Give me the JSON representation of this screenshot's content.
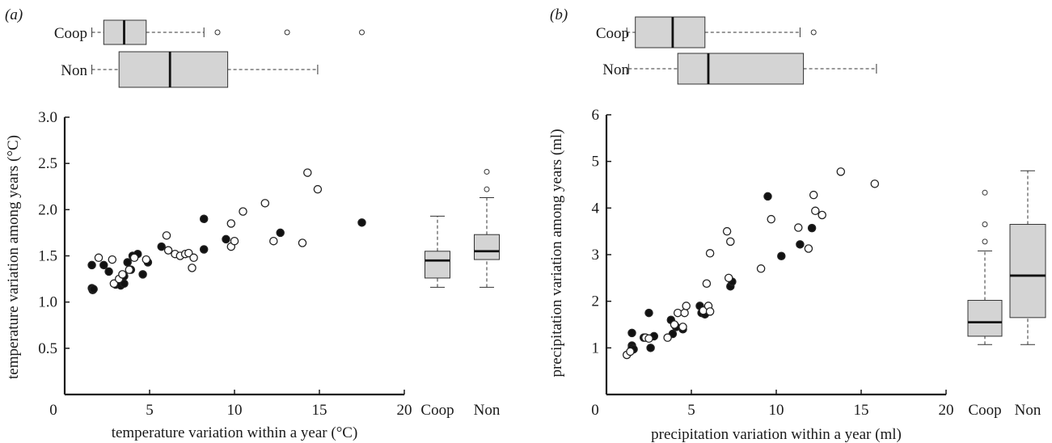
{
  "chart_data": [
    {
      "type": "scatter",
      "panel_label": "(a)",
      "xlabel": "temperature variation within a year (°C)",
      "ylabel": "temperature variation among years (°C)",
      "xlim": [
        0,
        20
      ],
      "ylim": [
        0,
        3.0
      ],
      "x_ticks": [
        "0",
        "5",
        "10",
        "15",
        "20"
      ],
      "y_ticks": [
        "0.5",
        "1.0",
        "1.5",
        "2.0",
        "2.5",
        "3.0"
      ],
      "y_tick_values": [
        0.5,
        1.0,
        1.5,
        2.0,
        2.5,
        3.0
      ],
      "grid": false,
      "marker_key": {
        "filled": "Coop",
        "open": "Non"
      },
      "series": [
        {
          "name": "Coop",
          "marker": "filled",
          "points": [
            [
              1.6,
              1.4
            ],
            [
              1.6,
              1.15
            ],
            [
              1.65,
              1.13
            ],
            [
              1.7,
              1.14
            ],
            [
              2.3,
              1.4
            ],
            [
              2.6,
              1.33
            ],
            [
              3.0,
              1.19
            ],
            [
              3.3,
              1.18
            ],
            [
              3.5,
              1.2
            ],
            [
              3.5,
              1.28
            ],
            [
              3.7,
              1.43
            ],
            [
              3.9,
              1.35
            ],
            [
              4.0,
              1.5
            ],
            [
              4.3,
              1.52
            ],
            [
              4.6,
              1.3
            ],
            [
              4.9,
              1.43
            ],
            [
              5.7,
              1.6
            ],
            [
              8.2,
              1.9
            ],
            [
              8.2,
              1.57
            ],
            [
              9.5,
              1.68
            ],
            [
              12.7,
              1.75
            ],
            [
              17.5,
              1.86
            ]
          ]
        },
        {
          "name": "Non",
          "marker": "open",
          "points": [
            [
              2.0,
              1.48
            ],
            [
              2.8,
              1.46
            ],
            [
              2.9,
              1.2
            ],
            [
              3.2,
              1.25
            ],
            [
              3.4,
              1.3
            ],
            [
              3.8,
              1.35
            ],
            [
              4.1,
              1.48
            ],
            [
              4.8,
              1.46
            ],
            [
              6.0,
              1.72
            ],
            [
              6.1,
              1.56
            ],
            [
              6.5,
              1.52
            ],
            [
              6.8,
              1.5
            ],
            [
              7.1,
              1.52
            ],
            [
              7.3,
              1.53
            ],
            [
              7.5,
              1.37
            ],
            [
              7.6,
              1.48
            ],
            [
              9.8,
              1.85
            ],
            [
              9.8,
              1.6
            ],
            [
              10.0,
              1.66
            ],
            [
              10.5,
              1.98
            ],
            [
              11.8,
              2.07
            ],
            [
              12.3,
              1.66
            ],
            [
              14.0,
              1.64
            ],
            [
              14.3,
              2.4
            ],
            [
              14.9,
              2.22
            ]
          ]
        }
      ],
      "top_boxplots": {
        "axis": "x",
        "groups": [
          {
            "label": "Coop",
            "whisker_low": 1.6,
            "q1": 2.3,
            "median": 3.5,
            "q3": 4.8,
            "whisker_high": 8.2,
            "outliers": [
              9.0,
              13.1,
              17.5
            ]
          },
          {
            "label": "Non",
            "whisker_low": 1.6,
            "q1": 3.2,
            "median": 6.2,
            "q3": 9.6,
            "whisker_high": 14.9,
            "outliers": []
          }
        ]
      },
      "side_boxplots": {
        "axis": "y",
        "groups": [
          {
            "label": "Coop",
            "whisker_low": 1.16,
            "q1": 1.26,
            "median": 1.45,
            "q3": 1.55,
            "whisker_high": 1.93,
            "outliers": []
          },
          {
            "label": "Non",
            "whisker_low": 1.16,
            "q1": 1.46,
            "median": 1.55,
            "q3": 1.73,
            "whisker_high": 2.13,
            "outliers": [
              2.22,
              2.41
            ]
          }
        ]
      }
    },
    {
      "type": "scatter",
      "panel_label": "(b)",
      "xlabel": "precipitation variation within a year (ml)",
      "ylabel": "precipitation variation among years (ml)",
      "xlim": [
        0,
        20
      ],
      "ylim": [
        0,
        6
      ],
      "x_ticks": [
        "0",
        "5",
        "10",
        "15",
        "20"
      ],
      "y_ticks": [
        "1",
        "2",
        "3",
        "4",
        "5",
        "6"
      ],
      "y_tick_values": [
        1,
        2,
        3,
        4,
        5,
        6
      ],
      "grid": false,
      "marker_key": {
        "filled": "Coop",
        "open": "Non"
      },
      "series": [
        {
          "name": "Coop",
          "marker": "filled",
          "points": [
            [
              1.5,
              1.32
            ],
            [
              1.5,
              1.05
            ],
            [
              1.5,
              1.0
            ],
            [
              1.6,
              0.97
            ],
            [
              2.2,
              1.22
            ],
            [
              2.5,
              1.75
            ],
            [
              2.6,
              1.0
            ],
            [
              2.8,
              1.25
            ],
            [
              3.8,
              1.6
            ],
            [
              3.9,
              1.3
            ],
            [
              4.1,
              1.45
            ],
            [
              4.5,
              1.4
            ],
            [
              5.5,
              1.9
            ],
            [
              5.6,
              1.75
            ],
            [
              5.8,
              1.72
            ],
            [
              7.3,
              2.32
            ],
            [
              7.4,
              2.42
            ],
            [
              9.5,
              4.25
            ],
            [
              10.3,
              2.97
            ],
            [
              11.4,
              3.22
            ],
            [
              12.1,
              3.57
            ]
          ]
        },
        {
          "name": "Non",
          "marker": "open",
          "points": [
            [
              1.2,
              0.85
            ],
            [
              1.4,
              0.92
            ],
            [
              2.3,
              1.22
            ],
            [
              2.5,
              1.2
            ],
            [
              3.6,
              1.22
            ],
            [
              4.0,
              1.5
            ],
            [
              4.2,
              1.75
            ],
            [
              4.5,
              1.45
            ],
            [
              4.6,
              1.75
            ],
            [
              4.7,
              1.9
            ],
            [
              5.7,
              1.8
            ],
            [
              5.9,
              2.38
            ],
            [
              6.0,
              1.9
            ],
            [
              6.1,
              1.78
            ],
            [
              6.1,
              3.03
            ],
            [
              7.1,
              3.5
            ],
            [
              7.2,
              2.5
            ],
            [
              7.3,
              3.28
            ],
            [
              9.1,
              2.7
            ],
            [
              9.7,
              3.76
            ],
            [
              11.3,
              3.58
            ],
            [
              11.9,
              3.13
            ],
            [
              12.2,
              4.28
            ],
            [
              12.3,
              3.94
            ],
            [
              12.7,
              3.85
            ],
            [
              13.8,
              4.78
            ],
            [
              15.8,
              4.52
            ]
          ]
        }
      ],
      "top_boxplots": {
        "axis": "x",
        "groups": [
          {
            "label": "Coop",
            "whisker_low": 1.2,
            "q1": 1.7,
            "median": 3.9,
            "q3": 5.8,
            "whisker_high": 11.4,
            "outliers": [
              12.2
            ]
          },
          {
            "label": "Non",
            "whisker_low": 1.3,
            "q1": 4.2,
            "median": 6.0,
            "q3": 11.6,
            "whisker_high": 15.9,
            "outliers": []
          }
        ]
      },
      "side_boxplots": {
        "axis": "y",
        "groups": [
          {
            "label": "Coop",
            "whisker_low": 1.07,
            "q1": 1.25,
            "median": 1.55,
            "q3": 2.02,
            "whisker_high": 3.08,
            "outliers": [
              3.28,
              3.65,
              4.33
            ]
          },
          {
            "label": "Non",
            "whisker_low": 1.07,
            "q1": 1.65,
            "median": 2.55,
            "q3": 3.65,
            "whisker_high": 4.8,
            "outliers": []
          }
        ]
      }
    }
  ]
}
